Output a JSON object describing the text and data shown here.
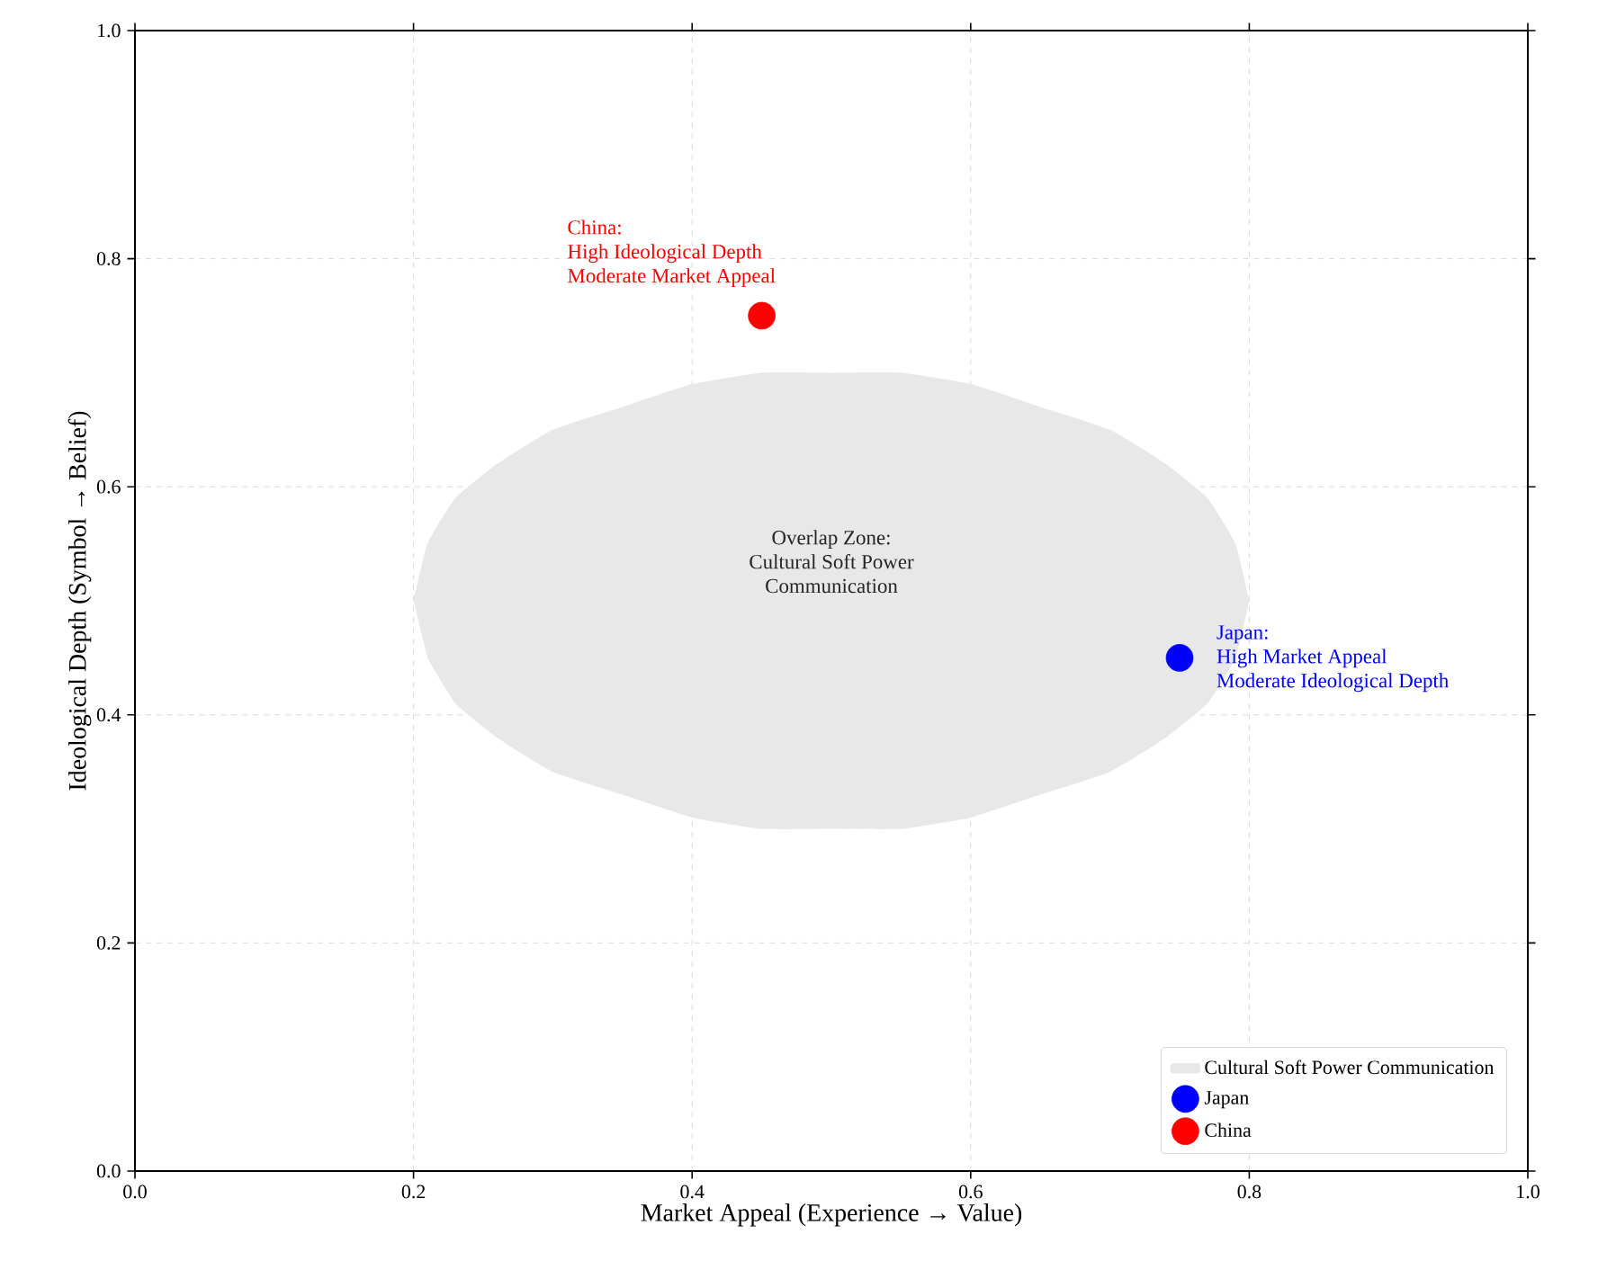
{
  "chart_data": {
    "type": "scatter",
    "xlabel": "Market Appeal (Experience → Value)",
    "ylabel": "Ideological Depth (Symbol → Belief)",
    "xlim": [
      0,
      1
    ],
    "ylim": [
      0,
      1
    ],
    "xticks": [
      {
        "value": 0,
        "label": "0.0"
      },
      0.2,
      0.4,
      0.6,
      0.8,
      {
        "value": 1,
        "label": "1.0"
      }
    ],
    "yticks": [
      {
        "value": 0,
        "label": "0.0"
      },
      0.2,
      0.4,
      0.6,
      0.8,
      {
        "value": 1,
        "label": "1.0"
      }
    ],
    "grid": true,
    "legend": "bottom right",
    "marker": "circle",
    "series": [
      {
        "name": "Cultural Soft Power Communication",
        "type": "area",
        "color": "#e8e8e8",
        "x": [
          0.2,
          0.21,
          0.23,
          0.26,
          0.3,
          0.35,
          0.4,
          0.45,
          0.5,
          0.55,
          0.6,
          0.65,
          0.7,
          0.74,
          0.77,
          0.79,
          0.8
        ],
        "values": [
          null,
          null,
          null,
          null,
          null,
          null,
          null,
          null,
          null,
          null,
          null,
          null,
          null,
          null,
          null,
          null,
          null
        ],
        "lower": [
          0.5,
          0.45,
          0.41,
          0.38,
          0.35,
          0.33,
          0.31,
          0.3,
          0.3,
          0.3,
          0.31,
          0.33,
          0.35,
          0.38,
          0.41,
          0.45,
          0.5
        ],
        "upper": [
          0.5,
          0.55,
          0.59,
          0.62,
          0.65,
          0.67,
          0.69,
          0.7,
          0.7,
          0.7,
          0.69,
          0.67,
          0.65,
          0.62,
          0.59,
          0.55,
          0.5
        ]
      },
      {
        "name": "Japan",
        "color": "#0000ff",
        "x": [
          0.75
        ],
        "values": [
          0.45
        ]
      },
      {
        "name": "China",
        "color": "#ff0000",
        "x": [
          0.45
        ],
        "values": [
          0.75
        ]
      }
    ],
    "annotations": [
      "Overlap Zone:",
      "Cultural Soft Power",
      "Communication",
      "Japan:",
      "High Market Appeal",
      "Moderate Ideological Depth",
      "China:",
      "High Ideological Depth",
      "Moderate Market Appeal"
    ]
  }
}
